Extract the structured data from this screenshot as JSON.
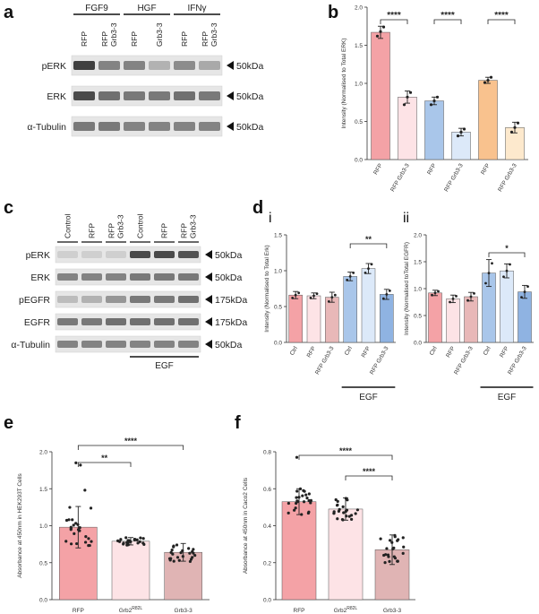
{
  "panel_labels": {
    "a": "a",
    "b": "b",
    "c": "c",
    "d": "d",
    "e": "e",
    "f": "f",
    "di": "i",
    "dii": "ii"
  },
  "blot_a": {
    "groups": [
      "FGF9",
      "HGF",
      "IFNγ"
    ],
    "lanes": [
      "RFP",
      "RFP Grb3-3",
      "RFP",
      "Grb3-3",
      "RFP",
      "RFP Grb3-3"
    ],
    "rows": [
      {
        "name": "pERK",
        "kda": "50kDa",
        "intensity": [
          0.9,
          0.55,
          0.55,
          0.3,
          0.5,
          0.35
        ]
      },
      {
        "name": "ERK",
        "kda": "50kDa",
        "intensity": [
          0.85,
          0.65,
          0.6,
          0.6,
          0.65,
          0.6
        ]
      },
      {
        "name": "α-Tubulin",
        "kda": "50kDa",
        "intensity": [
          0.6,
          0.6,
          0.55,
          0.55,
          0.55,
          0.55
        ]
      }
    ]
  },
  "blot_c": {
    "lanes": [
      "Control",
      "RFP",
      "RFP Grb3-3",
      "Control",
      "RFP",
      "RFP Grb3-3"
    ],
    "treatment_label": "EGF",
    "rows": [
      {
        "name": "pERK",
        "kda": "50kDa",
        "intensity": [
          0.15,
          0.15,
          0.15,
          0.85,
          0.85,
          0.8
        ]
      },
      {
        "name": "ERK",
        "kda": "50kDa",
        "intensity": [
          0.55,
          0.55,
          0.55,
          0.6,
          0.6,
          0.6
        ]
      },
      {
        "name": "pEGFR",
        "kda": "175kDa",
        "intensity": [
          0.25,
          0.3,
          0.45,
          0.6,
          0.6,
          0.65
        ]
      },
      {
        "name": "EGFR",
        "kda": "175kDa",
        "intensity": [
          0.6,
          0.6,
          0.65,
          0.65,
          0.65,
          0.65
        ]
      },
      {
        "name": "α-Tubulin",
        "kda": "50kDa",
        "intensity": [
          0.55,
          0.55,
          0.55,
          0.55,
          0.55,
          0.55
        ]
      }
    ]
  },
  "chart_data": [
    {
      "id": "b",
      "type": "bar",
      "categories": [
        "RFP",
        "RFP Grb3-3",
        "RFP",
        "RFP Grb3-3",
        "RFP",
        "RFP Grb3-3"
      ],
      "values": [
        1.67,
        0.82,
        0.77,
        0.36,
        1.04,
        0.42
      ],
      "errors": [
        0.08,
        0.08,
        0.05,
        0.05,
        0.04,
        0.07
      ],
      "points": [
        [
          1.62,
          1.68,
          1.74
        ],
        [
          0.72,
          0.82,
          0.88
        ],
        [
          0.72,
          0.77,
          0.82
        ],
        [
          0.31,
          0.36,
          0.4
        ],
        [
          1.01,
          1.04,
          1.08
        ],
        [
          0.36,
          0.42,
          0.48
        ]
      ],
      "colors": [
        "#f4a2a6",
        "#fde3e6",
        "#a9c6ea",
        "#dce9f9",
        "#f9c28e",
        "#fde9cd"
      ],
      "ylabel": "Intensity (Normalised to Total ERK)",
      "ylim": [
        0,
        2.0
      ],
      "yticks": [
        "0.0",
        "0.5",
        "1.0",
        "1.5",
        "2.0"
      ],
      "significance": [
        {
          "from": 0,
          "to": 1,
          "label": "****"
        },
        {
          "from": 2,
          "to": 3,
          "label": "****"
        },
        {
          "from": 4,
          "to": 5,
          "label": "****"
        }
      ]
    },
    {
      "id": "d-i",
      "type": "bar",
      "categories": [
        "Ctrl",
        "RFP",
        "RFP Grb3-3",
        "Ctrl",
        "RFP",
        "RFP Grb3-3"
      ],
      "values": [
        0.66,
        0.65,
        0.63,
        0.92,
        1.03,
        0.67
      ],
      "errors": [
        0.05,
        0.04,
        0.07,
        0.06,
        0.07,
        0.07
      ],
      "points": [
        [
          0.62,
          0.66,
          0.69
        ],
        [
          0.62,
          0.65,
          0.68
        ],
        [
          0.57,
          0.63,
          0.66
        ],
        [
          0.87,
          0.92,
          0.97
        ],
        [
          0.97,
          1.03,
          1.09
        ],
        [
          0.61,
          0.67,
          0.72
        ]
      ],
      "colors": [
        "#f4a2a6",
        "#fde3e6",
        "#e8b8b8",
        "#a9c6ea",
        "#dce9f9",
        "#8fb3e2"
      ],
      "ylabel": "Intensity (Normalised to Total Erk)",
      "ylim": [
        0,
        1.5
      ],
      "yticks": [
        "0.0",
        "0.5",
        "1.0",
        "1.5"
      ],
      "treatment_label": "EGF",
      "significance": [
        {
          "from": 3,
          "to": 5,
          "label": "**"
        }
      ]
    },
    {
      "id": "d-ii",
      "type": "bar",
      "categories": [
        "Ctrl",
        "RFP",
        "RFP Grb3-3",
        "Ctrl",
        "RFP",
        "RFP Grb3-3"
      ],
      "values": [
        0.92,
        0.81,
        0.85,
        1.29,
        1.33,
        0.94
      ],
      "errors": [
        0.05,
        0.07,
        0.08,
        0.25,
        0.13,
        0.12
      ],
      "points": [
        [
          0.88,
          0.92,
          0.95
        ],
        [
          0.75,
          0.81,
          0.86
        ],
        [
          0.78,
          0.85,
          0.91
        ],
        [
          1.1,
          1.29,
          1.47
        ],
        [
          1.22,
          1.33,
          1.45
        ],
        [
          0.84,
          0.94,
          1.04
        ]
      ],
      "colors": [
        "#f4a2a6",
        "#fde3e6",
        "#e8b8b8",
        "#a9c6ea",
        "#dce9f9",
        "#8fb3e2"
      ],
      "ylabel": "Intensity (Normalised toTotal EGFR)",
      "ylim": [
        0,
        2.0
      ],
      "yticks": [
        "0.0",
        "0.5",
        "1.0",
        "1.5",
        "2.0"
      ],
      "treatment_label": "EGF",
      "significance": [
        {
          "from": 3,
          "to": 5,
          "label": "*"
        }
      ]
    },
    {
      "id": "e",
      "type": "bar",
      "categories": [
        "RFP",
        "Grb2",
        "Grb3-3"
      ],
      "category_superscripts": [
        "",
        "R82L",
        ""
      ],
      "values": [
        0.98,
        0.79,
        0.64
      ],
      "errors": [
        0.28,
        0.05,
        0.12
      ],
      "colors": [
        "#f4a2a6",
        "#fde3e6",
        "#e0b4b4"
      ],
      "ylabel": "Absorbance at 450nm in HEK293T Cells",
      "ylim": [
        0,
        2.0
      ],
      "yticks": [
        "0.0",
        "0.5",
        "1.0",
        "1.5",
        "2.0"
      ],
      "point_counts": [
        24,
        24,
        24
      ],
      "outliers": [
        [
          1.85,
          1.82,
          1.48
        ],
        [],
        []
      ],
      "significance": [
        {
          "from": 0,
          "to": 1,
          "label": "**"
        },
        {
          "from": 0,
          "to": 2,
          "label": "****"
        }
      ]
    },
    {
      "id": "f",
      "type": "bar",
      "categories": [
        "RFP",
        "Grb2",
        "Grb3-3"
      ],
      "category_superscripts": [
        "",
        "R82L",
        ""
      ],
      "values": [
        0.53,
        0.49,
        0.27
      ],
      "errors": [
        0.07,
        0.06,
        0.08
      ],
      "colors": [
        "#f4a2a6",
        "#fde3e6",
        "#e0b4b4"
      ],
      "ylabel": "Absorbance at 450nm in Caco2 Cells",
      "ylim": [
        0,
        0.8
      ],
      "yticks": [
        "0.0",
        "0.2",
        "0.4",
        "0.6",
        "0.8"
      ],
      "point_counts": [
        24,
        24,
        24
      ],
      "outliers": [
        [
          0.77
        ],
        [],
        []
      ],
      "significance": [
        {
          "from": 0,
          "to": 2,
          "label": "****"
        },
        {
          "from": 1,
          "to": 2,
          "label": "****"
        }
      ]
    }
  ]
}
